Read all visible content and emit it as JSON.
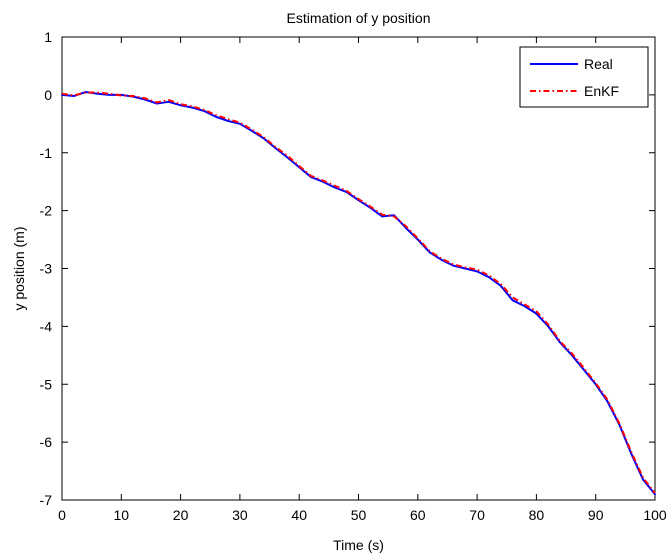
{
  "chart_data": {
    "type": "line",
    "title": "Estimation of y position",
    "xlabel": "Time (s)",
    "ylabel": "y position (m)",
    "xlim": [
      0,
      100
    ],
    "ylim": [
      -7,
      1
    ],
    "x_ticks": [
      0,
      10,
      20,
      30,
      40,
      50,
      60,
      70,
      80,
      90,
      100
    ],
    "y_ticks": [
      1,
      0,
      -1,
      -2,
      -3,
      -4,
      -5,
      -6,
      -7
    ],
    "grid": false,
    "legend_position": "top-right",
    "series": [
      {
        "name": "Real",
        "color": "#0000ff",
        "style": "solid",
        "x": [
          0,
          2,
          4,
          6,
          8,
          10,
          12,
          14,
          16,
          18,
          20,
          22,
          24,
          26,
          28,
          30,
          32,
          34,
          36,
          38,
          40,
          42,
          44,
          46,
          48,
          50,
          52,
          54,
          56,
          58,
          60,
          62,
          64,
          66,
          68,
          70,
          72,
          74,
          76,
          78,
          80,
          82,
          84,
          86,
          88,
          90,
          92,
          94,
          96,
          98,
          100
        ],
        "y": [
          0.0,
          -0.02,
          0.05,
          0.02,
          0.0,
          0.0,
          -0.03,
          -0.08,
          -0.15,
          -0.12,
          -0.18,
          -0.22,
          -0.28,
          -0.38,
          -0.45,
          -0.5,
          -0.62,
          -0.75,
          -0.92,
          -1.08,
          -1.25,
          -1.42,
          -1.5,
          -1.6,
          -1.68,
          -1.82,
          -1.95,
          -2.1,
          -2.08,
          -2.3,
          -2.5,
          -2.72,
          -2.85,
          -2.95,
          -3.0,
          -3.05,
          -3.15,
          -3.3,
          -3.55,
          -3.65,
          -3.78,
          -4.0,
          -4.28,
          -4.5,
          -4.75,
          -5.0,
          -5.3,
          -5.7,
          -6.2,
          -6.65,
          -6.9
        ]
      },
      {
        "name": "EnKF",
        "color": "#ff0000",
        "style": "dashdot",
        "x": [
          0,
          2,
          4,
          6,
          8,
          10,
          12,
          14,
          16,
          18,
          20,
          22,
          24,
          26,
          28,
          30,
          32,
          34,
          36,
          38,
          40,
          42,
          44,
          46,
          48,
          50,
          52,
          54,
          56,
          58,
          60,
          62,
          64,
          66,
          68,
          70,
          72,
          74,
          76,
          78,
          80,
          82,
          84,
          86,
          88,
          90,
          92,
          94,
          96,
          98,
          100
        ],
        "y": [
          0.02,
          -0.01,
          0.04,
          0.04,
          0.02,
          -0.01,
          -0.02,
          -0.06,
          -0.13,
          -0.09,
          -0.16,
          -0.2,
          -0.26,
          -0.35,
          -0.42,
          -0.48,
          -0.6,
          -0.73,
          -0.9,
          -1.05,
          -1.23,
          -1.4,
          -1.48,
          -1.57,
          -1.66,
          -1.8,
          -1.93,
          -2.07,
          -2.1,
          -2.27,
          -2.48,
          -2.7,
          -2.83,
          -2.93,
          -2.98,
          -3.02,
          -3.12,
          -3.27,
          -3.5,
          -3.62,
          -3.74,
          -3.97,
          -4.26,
          -4.47,
          -4.72,
          -4.98,
          -5.27,
          -5.68,
          -6.17,
          -6.62,
          -6.88
        ]
      }
    ]
  }
}
